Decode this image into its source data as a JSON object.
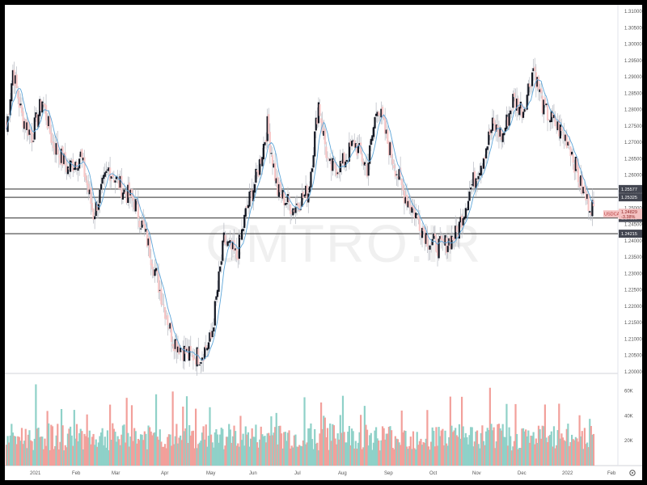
{
  "watermark": "CMTRO.IR",
  "symbol": "USDCAD",
  "colors": {
    "bull_body": "#131722",
    "bear_body": "#f7c7c7",
    "wick": "#b5b8c0",
    "ma": "#5ea6d9",
    "level_line": "#555555",
    "level_label_bg": "#434651",
    "price_label_bg": "#f4c2c2",
    "volume_up": "#8fd1c8",
    "volume_down": "#f2a09b",
    "axis_text": "#555555"
  },
  "axis": {
    "y_ticks": [
      "1.31000",
      "1.30500",
      "1.30000",
      "1.29500",
      "1.29000",
      "1.28500",
      "1.28000",
      "1.27500",
      "1.27000",
      "1.26500",
      "1.26000",
      "1.25500",
      "1.25000",
      "1.24500",
      "1.24000",
      "1.23500",
      "1.23000",
      "1.22500",
      "1.22000",
      "1.21500",
      "1.21000",
      "1.20500",
      "1.20000"
    ],
    "x_labels": [
      "2021",
      "Feb",
      "Mar",
      "Apr",
      "May",
      "Jun",
      "Jul",
      "Aug",
      "Sep",
      "Oct",
      "Nov",
      "Dec",
      "2022",
      "Feb"
    ],
    "volume_ticks": [
      "60K",
      "40K",
      "20K"
    ]
  },
  "levels": [
    {
      "price": 1.25577,
      "label": "1.25577"
    },
    {
      "price": 1.25325,
      "label": "1.25325"
    },
    {
      "price": 1.24695,
      "label": "1.24695"
    },
    {
      "price": 1.24215,
      "label": "1.24215"
    }
  ],
  "price_label": {
    "symbol": "USDCAD",
    "price": "1.24829",
    "change": "-3.38%",
    "value": 1.24829
  },
  "chart_data": {
    "type": "candlestick",
    "symbol": "USDCAD",
    "y_range": [
      1.2,
      1.31
    ],
    "x_categories": [
      "2021",
      "Feb",
      "Mar",
      "Apr",
      "May",
      "Jun",
      "Jul",
      "Aug",
      "Sep",
      "Oct",
      "Nov",
      "Dec",
      "2022",
      "Feb"
    ],
    "anchor_closes": [
      [
        0,
        1.274
      ],
      [
        5,
        1.292
      ],
      [
        12,
        1.278
      ],
      [
        20,
        1.272
      ],
      [
        28,
        1.283
      ],
      [
        36,
        1.27
      ],
      [
        48,
        1.262
      ],
      [
        58,
        1.266
      ],
      [
        68,
        1.248
      ],
      [
        80,
        1.262
      ],
      [
        92,
        1.255
      ],
      [
        100,
        1.252
      ],
      [
        110,
        1.24
      ],
      [
        120,
        1.225
      ],
      [
        130,
        1.21
      ],
      [
        142,
        1.205
      ],
      [
        152,
        1.205
      ],
      [
        160,
        1.21
      ],
      [
        170,
        1.24
      ],
      [
        180,
        1.235
      ],
      [
        188,
        1.25
      ],
      [
        196,
        1.26
      ],
      [
        204,
        1.275
      ],
      [
        212,
        1.255
      ],
      [
        224,
        1.25
      ],
      [
        236,
        1.255
      ],
      [
        244,
        1.282
      ],
      [
        252,
        1.262
      ],
      [
        262,
        1.263
      ],
      [
        272,
        1.27
      ],
      [
        282,
        1.262
      ],
      [
        290,
        1.282
      ],
      [
        298,
        1.27
      ],
      [
        310,
        1.255
      ],
      [
        320,
        1.248
      ],
      [
        330,
        1.24
      ],
      [
        340,
        1.238
      ],
      [
        352,
        1.242
      ],
      [
        362,
        1.255
      ],
      [
        372,
        1.265
      ],
      [
        380,
        1.275
      ],
      [
        388,
        1.272
      ],
      [
        396,
        1.283
      ],
      [
        404,
        1.28
      ],
      [
        412,
        1.293
      ],
      [
        420,
        1.28
      ],
      [
        430,
        1.275
      ],
      [
        440,
        1.27
      ],
      [
        448,
        1.258
      ],
      [
        454,
        1.252
      ],
      [
        459,
        1.2505
      ]
    ],
    "volume_range": [
      0,
      70000
    ]
  }
}
